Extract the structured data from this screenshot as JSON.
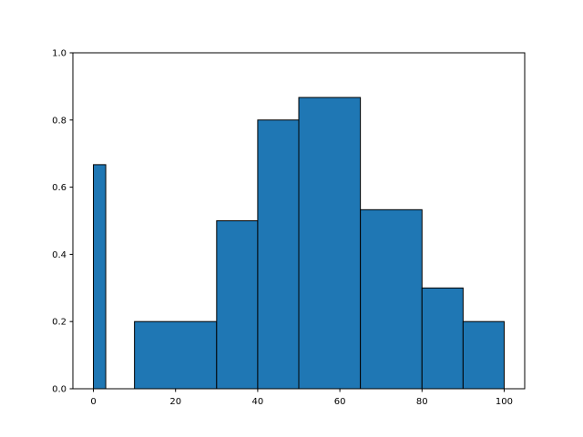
{
  "chart_data": {
    "type": "histogram",
    "bins": [
      0,
      3,
      10,
      30,
      40,
      50,
      65,
      80,
      90,
      100
    ],
    "values": [
      0.667,
      0,
      0.2,
      0.5,
      0.8,
      0.867,
      0.533,
      0.3,
      0.2
    ],
    "color": "#1f77b4",
    "edgecolor": "#000000",
    "xlim": [
      -5,
      105
    ],
    "xticks": [
      0,
      20,
      40,
      60,
      80,
      100
    ],
    "ylim": [
      0,
      1
    ],
    "yticks": [
      {
        "value": 0,
        "label": "0.0"
      },
      {
        "value": 0.2,
        "label": "0.2"
      },
      {
        "value": 0.4,
        "label": "0.4"
      },
      {
        "value": 0.6,
        "label": "0.6"
      },
      {
        "value": 0.8,
        "label": "0.8"
      },
      {
        "value": 1,
        "label": "1.0"
      }
    ],
    "grid": false
  }
}
